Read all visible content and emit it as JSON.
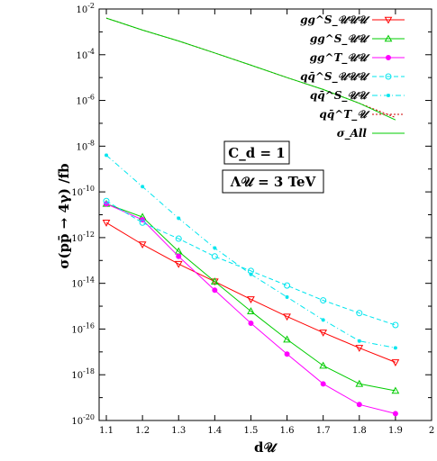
{
  "chart_data": {
    "type": "line",
    "x_scale": "linear",
    "y_scale": "log",
    "xlim": [
      1.1,
      2.0
    ],
    "ylim_exponent": [
      -20,
      -2
    ],
    "xlabel": "d𝒰",
    "ylabel": "σ(pp̄ → 4γ) /fb",
    "x_ticks": [
      "1.1",
      "1.2",
      "1.3",
      "1.4",
      "1.5",
      "1.6",
      "1.7",
      "1.8",
      "1.9",
      "2"
    ],
    "y_tick_exponents": [
      -20,
      -18,
      -16,
      -14,
      -12,
      -10,
      -8,
      -6,
      -4,
      -2
    ],
    "y_tick_base": "10",
    "legend_position": "top-right",
    "annotations": [
      "C_d = 1",
      "Λ𝒰 = 3 TeV"
    ],
    "series": [
      {
        "name": "gg^S_𝒰𝒰𝒰",
        "color": "#ff0000",
        "marker": "triangle-down",
        "dash": "solid",
        "x": [
          1.1,
          1.2,
          1.3,
          1.4,
          1.5,
          1.6,
          1.7,
          1.8,
          1.9
        ],
        "y": [
          4.5e-12,
          5e-13,
          7e-14,
          1.2e-14,
          2e-15,
          3.5e-16,
          7e-17,
          1.5e-17,
          3.5e-18
        ]
      },
      {
        "name": "gg^S_𝒰𝒰",
        "color": "#00cc00",
        "marker": "triangle-up",
        "dash": "solid",
        "x": [
          1.1,
          1.2,
          1.3,
          1.4,
          1.5,
          1.6,
          1.7,
          1.8,
          1.9
        ],
        "y": [
          3e-11,
          8e-12,
          2.5e-13,
          1.2e-14,
          6e-16,
          3.5e-17,
          2.5e-18,
          4e-19,
          2e-19
        ]
      },
      {
        "name": "gg^T_𝒰𝒰",
        "color": "#ff00ff",
        "marker": "circle-filled",
        "dash": "solid",
        "x": [
          1.1,
          1.2,
          1.3,
          1.4,
          1.5,
          1.6,
          1.7,
          1.8,
          1.9
        ],
        "y": [
          3e-11,
          6e-12,
          1.5e-13,
          5e-15,
          1.8e-16,
          8e-18,
          4e-19,
          5e-20,
          2e-20
        ]
      },
      {
        "name": "qq̄^S_𝒰𝒰𝒰",
        "color": "#00e5ee",
        "marker": "circle-open",
        "dash": "dashed",
        "x": [
          1.1,
          1.2,
          1.3,
          1.4,
          1.5,
          1.6,
          1.7,
          1.8,
          1.9
        ],
        "y": [
          4e-11,
          4.5e-12,
          9e-13,
          1.5e-13,
          3.5e-14,
          8e-15,
          1.8e-15,
          5e-16,
          1.5e-16
        ]
      },
      {
        "name": "qq̄^S_𝒰𝒰",
        "color": "#00e5ee",
        "marker": "star",
        "dash": "dashdot",
        "x": [
          1.1,
          1.2,
          1.3,
          1.4,
          1.5,
          1.6,
          1.7,
          1.8,
          1.9
        ],
        "y": [
          4e-09,
          1.7e-10,
          7e-12,
          3.5e-13,
          2.5e-14,
          2.5e-15,
          2.5e-16,
          3e-17,
          1.5e-17
        ]
      },
      {
        "name": "qq̄^T_𝒰",
        "color": "#cc0000",
        "marker": "none",
        "dash": "dotted",
        "x": [
          1.1,
          1.2,
          1.3,
          1.4,
          1.5,
          1.6,
          1.7,
          1.8,
          1.9
        ],
        "y": [
          0.004,
          0.0012,
          0.0004,
          0.00012,
          3.5e-05,
          1e-05,
          3e-06,
          7.5e-07,
          1.8e-07
        ]
      },
      {
        "name": "σ_All",
        "color": "#00cc00",
        "marker": "none",
        "dash": "solid",
        "x": [
          1.1,
          1.2,
          1.3,
          1.4,
          1.5,
          1.6,
          1.7,
          1.8,
          1.9
        ],
        "y": [
          0.004,
          0.0012,
          0.0004,
          0.00012,
          3.5e-05,
          1e-05,
          3e-06,
          7.5e-07,
          1.4e-07
        ]
      }
    ]
  }
}
